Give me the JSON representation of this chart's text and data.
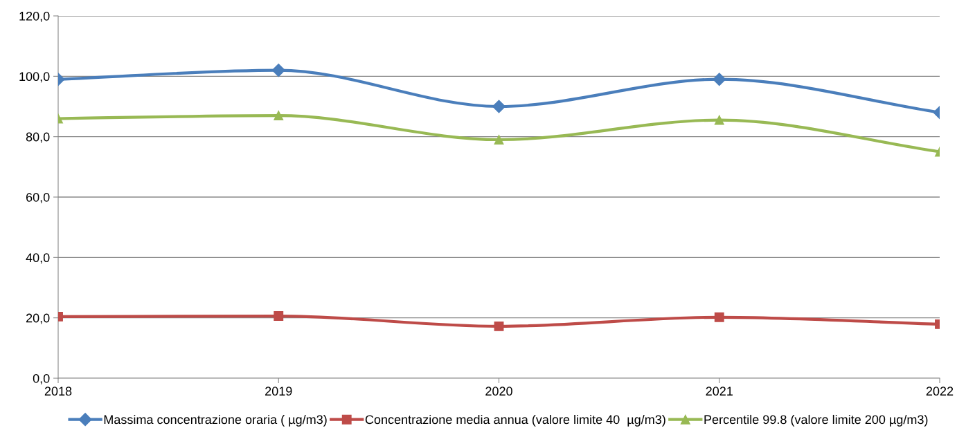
{
  "chart_data": {
    "type": "line",
    "categories": [
      "2018",
      "2019",
      "2020",
      "2021",
      "2022"
    ],
    "series": [
      {
        "name": "Massima concentrazione oraria ( µg/m3)",
        "color": "#4a7ebb",
        "marker": "diamond",
        "values": [
          99,
          102,
          90,
          99,
          88
        ]
      },
      {
        "name": "Concentrazione media annua (valore limite 40  µg/m3)",
        "color": "#be4b48",
        "marker": "square",
        "values": [
          20.4,
          20.6,
          17.2,
          20.2,
          17.9
        ]
      },
      {
        "name": "Percentile 99.8 (valore limite 200 µg/m3)",
        "color": "#98b954",
        "marker": "triangle",
        "values": [
          86,
          87,
          79,
          85.5,
          75
        ]
      }
    ],
    "ylim": [
      0,
      120
    ],
    "yticks": [
      {
        "value": 0,
        "label": "0,0"
      },
      {
        "value": 20,
        "label": "20,0"
      },
      {
        "value": 40,
        "label": "40,0"
      },
      {
        "value": 60,
        "label": "60,0"
      },
      {
        "value": 80,
        "label": "80,0"
      },
      {
        "value": 100,
        "label": "100,0"
      },
      {
        "value": 120,
        "label": "120,0"
      }
    ],
    "grid": "y",
    "legend": "bottom",
    "line_style": "solid"
  }
}
